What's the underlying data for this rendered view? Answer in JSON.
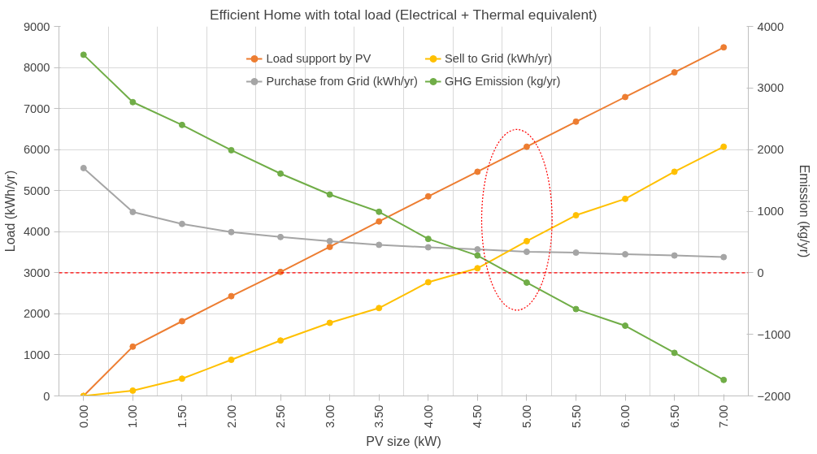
{
  "chart_data": {
    "type": "line",
    "title": "Efficient Home with total load (Electrical + Thermal equivalent)",
    "xlabel": "PV size (kW)",
    "ylabel": "Load (kWh/yr)",
    "y2label": "Emission (kg/yr)",
    "categories": [
      "0.00",
      "1.00",
      "1.50",
      "2.00",
      "2.50",
      "3.00",
      "3.50",
      "4.00",
      "4.50",
      "5.00",
      "5.50",
      "6.00",
      "6.50",
      "7.00"
    ],
    "series": [
      {
        "name": "Load support by PV",
        "color": "#ed7d31",
        "values": [
          0,
          1200,
          1820,
          2430,
          3020,
          3630,
          4250,
          4860,
          5460,
          6070,
          6680,
          7280,
          7880,
          8490
        ]
      },
      {
        "name": "Purchase from Grid (kWh/yr)",
        "color": "#a5a5a5",
        "values": [
          5550,
          4480,
          4190,
          3990,
          3870,
          3770,
          3680,
          3620,
          3570,
          3510,
          3490,
          3450,
          3420,
          3380
        ]
      },
      {
        "name": "Sell to Grid (kWh/yr)",
        "color": "#ffc000",
        "values": [
          0,
          130,
          420,
          880,
          1350,
          1780,
          2140,
          2770,
          3110,
          3770,
          4400,
          4800,
          5460,
          6070
        ]
      },
      {
        "name": "GHG Emission (kg/yr)",
        "color": "#70ad47",
        "axis": "y2",
        "values": [
          3540,
          2770,
          2400,
          1990,
          1610,
          1270,
          990,
          550,
          280,
          -160,
          -590,
          -860,
          -1300,
          -1740
        ]
      }
    ],
    "ylim": [
      0,
      9000
    ],
    "yticks": [
      0,
      1000,
      2000,
      3000,
      4000,
      5000,
      6000,
      7000,
      8000,
      9000
    ],
    "y2lim": [
      -2000,
      4000
    ],
    "y2ticks": [
      -2000,
      -1000,
      0,
      1000,
      2000,
      3000,
      4000
    ],
    "ref_lines": [
      {
        "axis": "y2",
        "value": 0,
        "color": "#ff0000",
        "line_style": "dashed"
      }
    ],
    "grid": true,
    "legend": "top",
    "marker": "circle",
    "line_style": "solid"
  }
}
